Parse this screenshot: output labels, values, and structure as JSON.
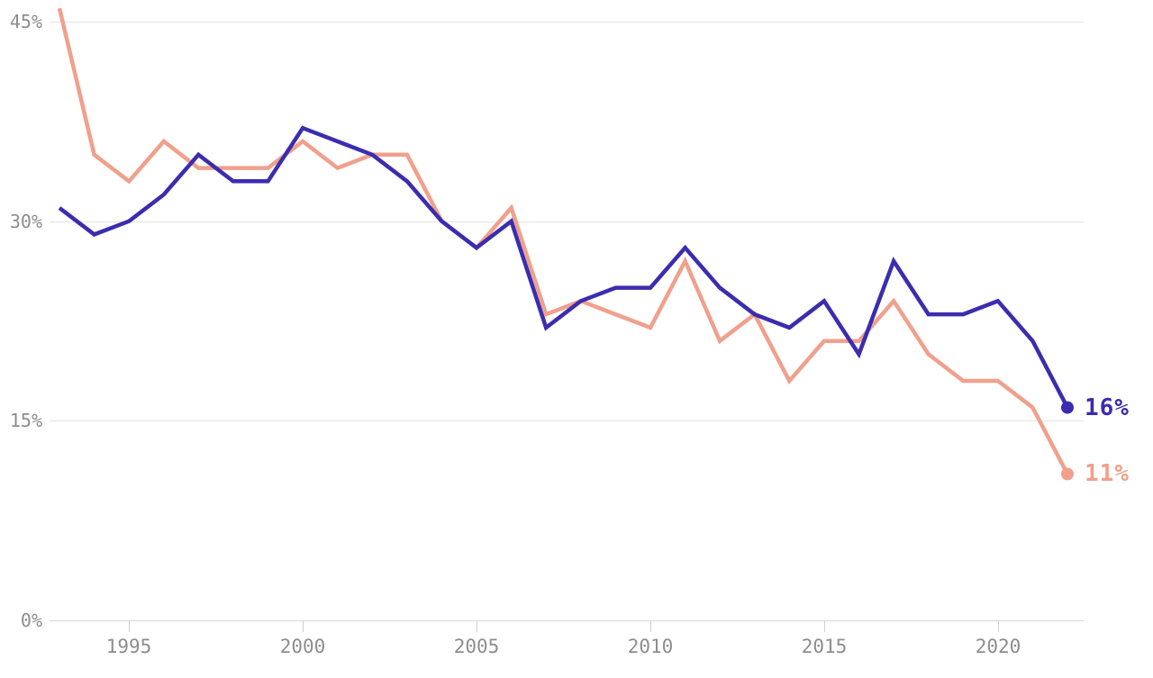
{
  "chart_data": {
    "type": "line",
    "title": "",
    "xlabel": "",
    "ylabel": "",
    "x": [
      1993,
      1994,
      1995,
      1996,
      1997,
      1998,
      1999,
      2000,
      2001,
      2002,
      2003,
      2004,
      2005,
      2006,
      2007,
      2008,
      2009,
      2010,
      2011,
      2012,
      2013,
      2014,
      2015,
      2016,
      2017,
      2018,
      2019,
      2020,
      2021,
      2022
    ],
    "series": [
      {
        "id": "indigo",
        "color": "#3b2dae",
        "end_label": "16%",
        "values": [
          31,
          29,
          30,
          32,
          35,
          33,
          33,
          37,
          36,
          35,
          33,
          30,
          28,
          30,
          22,
          24,
          25,
          25,
          28,
          25,
          23,
          22,
          24,
          20,
          27,
          23,
          23,
          24,
          21,
          16
        ]
      },
      {
        "id": "salmon",
        "color": "#f0a08c",
        "end_label": "11%",
        "values": [
          46,
          35,
          33,
          36,
          34,
          34,
          34,
          36,
          34,
          35,
          35,
          30,
          28,
          31,
          23,
          24,
          23,
          22,
          27,
          21,
          23,
          18,
          21,
          21,
          24,
          20,
          18,
          18,
          16,
          11
        ]
      }
    ],
    "yticks": [
      {
        "value": 45,
        "label": "45%"
      },
      {
        "value": 30,
        "label": "30%"
      },
      {
        "value": 15,
        "label": "15%"
      },
      {
        "value": 0,
        "label": "0%"
      }
    ],
    "xticks": [
      {
        "value": 1995,
        "label": "1995"
      },
      {
        "value": 2000,
        "label": "2000"
      },
      {
        "value": 2005,
        "label": "2005"
      },
      {
        "value": 2010,
        "label": "2010"
      },
      {
        "value": 2015,
        "label": "2015"
      },
      {
        "value": 2020,
        "label": "2020"
      }
    ],
    "xlim": [
      1993,
      2022
    ],
    "ylim": [
      0,
      45
    ],
    "grid": "horizontal",
    "legend": "inline-end-labels",
    "units": "percent"
  },
  "style": {
    "background": "#ffffff",
    "grid_color": "#e3e3e3",
    "axis_label_color": "#8d8d8d"
  }
}
